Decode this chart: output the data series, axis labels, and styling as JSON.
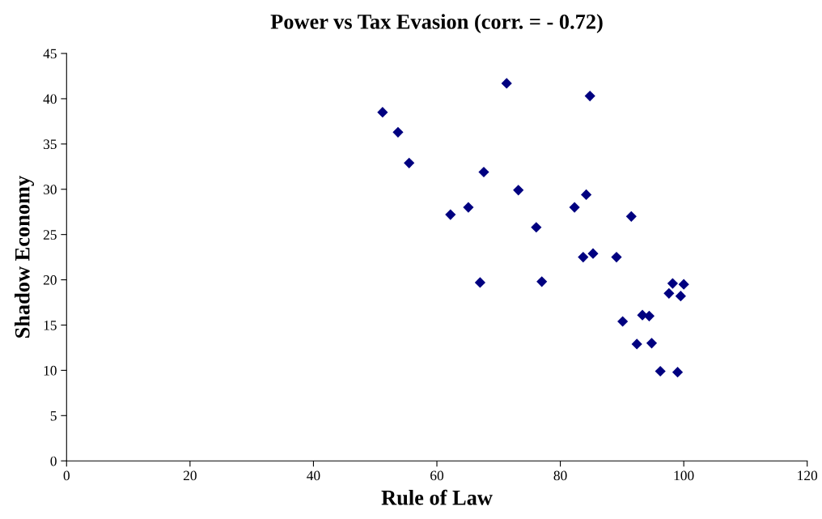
{
  "chart_data": {
    "type": "scatter",
    "title": "Power vs Tax Evasion (corr. = - 0.72)",
    "xlabel": "Rule of Law",
    "ylabel": "Shadow Economy",
    "x": [
      51.2,
      53.7,
      55.5,
      71.3,
      84.8,
      67.6,
      73.2,
      62.2,
      65.1,
      76.1,
      82.3,
      84.2,
      91.5,
      83.7,
      85.3,
      89.1,
      67.0,
      77.0,
      98.2,
      100.0,
      97.6,
      99.5,
      90.1,
      93.3,
      94.4,
      92.4,
      94.8,
      96.2,
      99.0
    ],
    "values": [
      38.5,
      36.3,
      32.9,
      41.7,
      40.3,
      31.9,
      29.9,
      27.2,
      28.0,
      25.8,
      28.0,
      29.4,
      27.0,
      22.5,
      22.9,
      22.5,
      19.7,
      19.8,
      19.6,
      19.5,
      18.5,
      18.2,
      15.4,
      16.1,
      16.0,
      12.9,
      13.0,
      9.9,
      9.8
    ],
    "color": "#000080",
    "marker": "diamond",
    "xlim": [
      0,
      120
    ],
    "xticks": [
      0,
      20,
      40,
      60,
      80,
      100,
      120
    ],
    "ylim": [
      0,
      45
    ],
    "yticks": [
      0,
      5,
      10,
      15,
      20,
      25,
      30,
      35,
      40,
      45
    ],
    "grid": false,
    "legend": false
  }
}
